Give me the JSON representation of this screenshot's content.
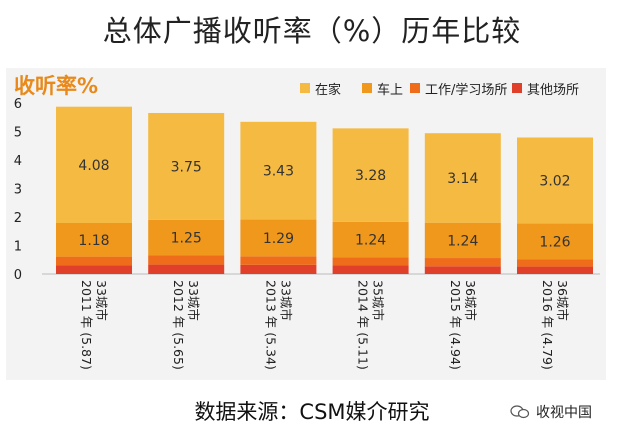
{
  "title": "总体广播收听率（%）历年比较",
  "source": "数据来源：CSM媒介研究",
  "brand": "收视中国",
  "brand_icon": "wechat-bubbles-icon",
  "colors": {
    "home": "#f5ba42",
    "car": "#f0981c",
    "work": "#ee6c1a",
    "other": "#e0402a"
  },
  "chart_data": {
    "type": "bar",
    "stacked": true,
    "ylabel": "收听率%",
    "ylim": [
      0,
      6
    ],
    "yticks": [
      "0",
      "1",
      "2",
      "3",
      "4",
      "5",
      "6"
    ],
    "categories": [
      [
        "33城市",
        "2011 年 (5.87)"
      ],
      [
        "33城市",
        "2012 年 (5.65)"
      ],
      [
        "33城市",
        "2013 年 (5.34)"
      ],
      [
        "35城市",
        "2014 年 (5.11)"
      ],
      [
        "36城市",
        "2015 年 (4.94)"
      ],
      [
        "36城市",
        "2016 年 (4.79)"
      ]
    ],
    "totals": [
      5.87,
      5.65,
      5.34,
      5.11,
      4.94,
      4.79
    ],
    "series": [
      {
        "name": "其他场所",
        "key": "other",
        "values": [
          0.31,
          0.33,
          0.32,
          0.3,
          0.27,
          0.26
        ]
      },
      {
        "name": "工作/学习场所",
        "key": "work",
        "values": [
          0.3,
          0.32,
          0.3,
          0.29,
          0.29,
          0.25
        ]
      },
      {
        "name": "车上",
        "key": "car",
        "values": [
          1.18,
          1.25,
          1.29,
          1.24,
          1.24,
          1.26
        ],
        "labels": [
          "1.18",
          "1.25",
          "1.29",
          "1.24",
          "1.24",
          "1.26"
        ]
      },
      {
        "name": "在家",
        "key": "home",
        "values": [
          4.08,
          3.75,
          3.43,
          3.28,
          3.14,
          3.02
        ],
        "labels": [
          "4.08",
          "3.75",
          "3.43",
          "3.28",
          "3.14",
          "3.02"
        ]
      }
    ],
    "legend": [
      {
        "name": "在家",
        "key": "home"
      },
      {
        "name": "车上",
        "key": "car"
      },
      {
        "name": "工作/学习场所",
        "key": "work"
      },
      {
        "name": "其他场所",
        "key": "other"
      }
    ]
  }
}
